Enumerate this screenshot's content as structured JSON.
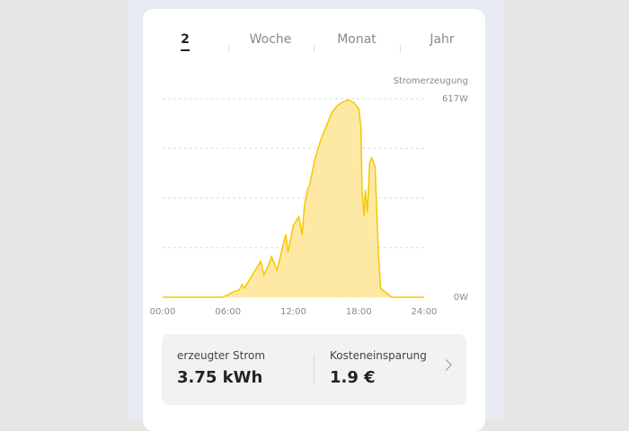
{
  "tabs": [
    "2",
    "Woche",
    "Monat",
    "Jahr"
  ],
  "chart_data": {
    "type": "area",
    "axis_label": "Stromerzeugung",
    "color": "#f5c800",
    "fill": "#fde9a3",
    "x": [
      0,
      5.5,
      6.0,
      6.5,
      7.0,
      7.3,
      7.5,
      8.0,
      8.5,
      9.0,
      9.3,
      9.7,
      10.0,
      10.5,
      11.0,
      11.3,
      11.5,
      12.0,
      12.5,
      12.8,
      13.0,
      13.3,
      13.5,
      14.0,
      14.5,
      15.0,
      15.5,
      16.0,
      16.5,
      17.0,
      17.5,
      18.0,
      18.2,
      18.3,
      18.5,
      18.6,
      18.8,
      19.0,
      19.2,
      19.5,
      19.8,
      20.0,
      20.5,
      21.0,
      24
    ],
    "values": [
      0,
      0,
      8,
      17,
      22,
      39,
      28,
      56,
      84,
      112,
      70,
      98,
      126,
      84,
      154,
      195,
      140,
      223,
      251,
      195,
      279,
      335,
      349,
      433,
      488,
      530,
      572,
      595,
      606,
      614,
      606,
      586,
      530,
      335,
      251,
      335,
      265,
      419,
      433,
      405,
      140,
      28,
      14,
      0,
      0
    ],
    "xlim": [
      0,
      24
    ],
    "xticks": [
      {
        "value": 0,
        "label": "00:00"
      },
      {
        "value": 6,
        "label": "06:00"
      },
      {
        "value": 12,
        "label": "12:00"
      },
      {
        "value": 18,
        "label": "18:00"
      },
      {
        "value": 24,
        "label": "24:00"
      }
    ],
    "ylim": [
      0,
      617
    ],
    "yticks": [
      {
        "value": 0,
        "label": "0W"
      },
      {
        "value": 617,
        "label": "617W"
      }
    ],
    "ygrid": [
      0,
      154.25,
      308.5,
      462.75,
      617
    ]
  },
  "summary": [
    {
      "label": "erzeugter Strom",
      "value": "3.75 kWh"
    },
    {
      "label": "Kosteneinsparung",
      "value": "1.9 €"
    }
  ]
}
